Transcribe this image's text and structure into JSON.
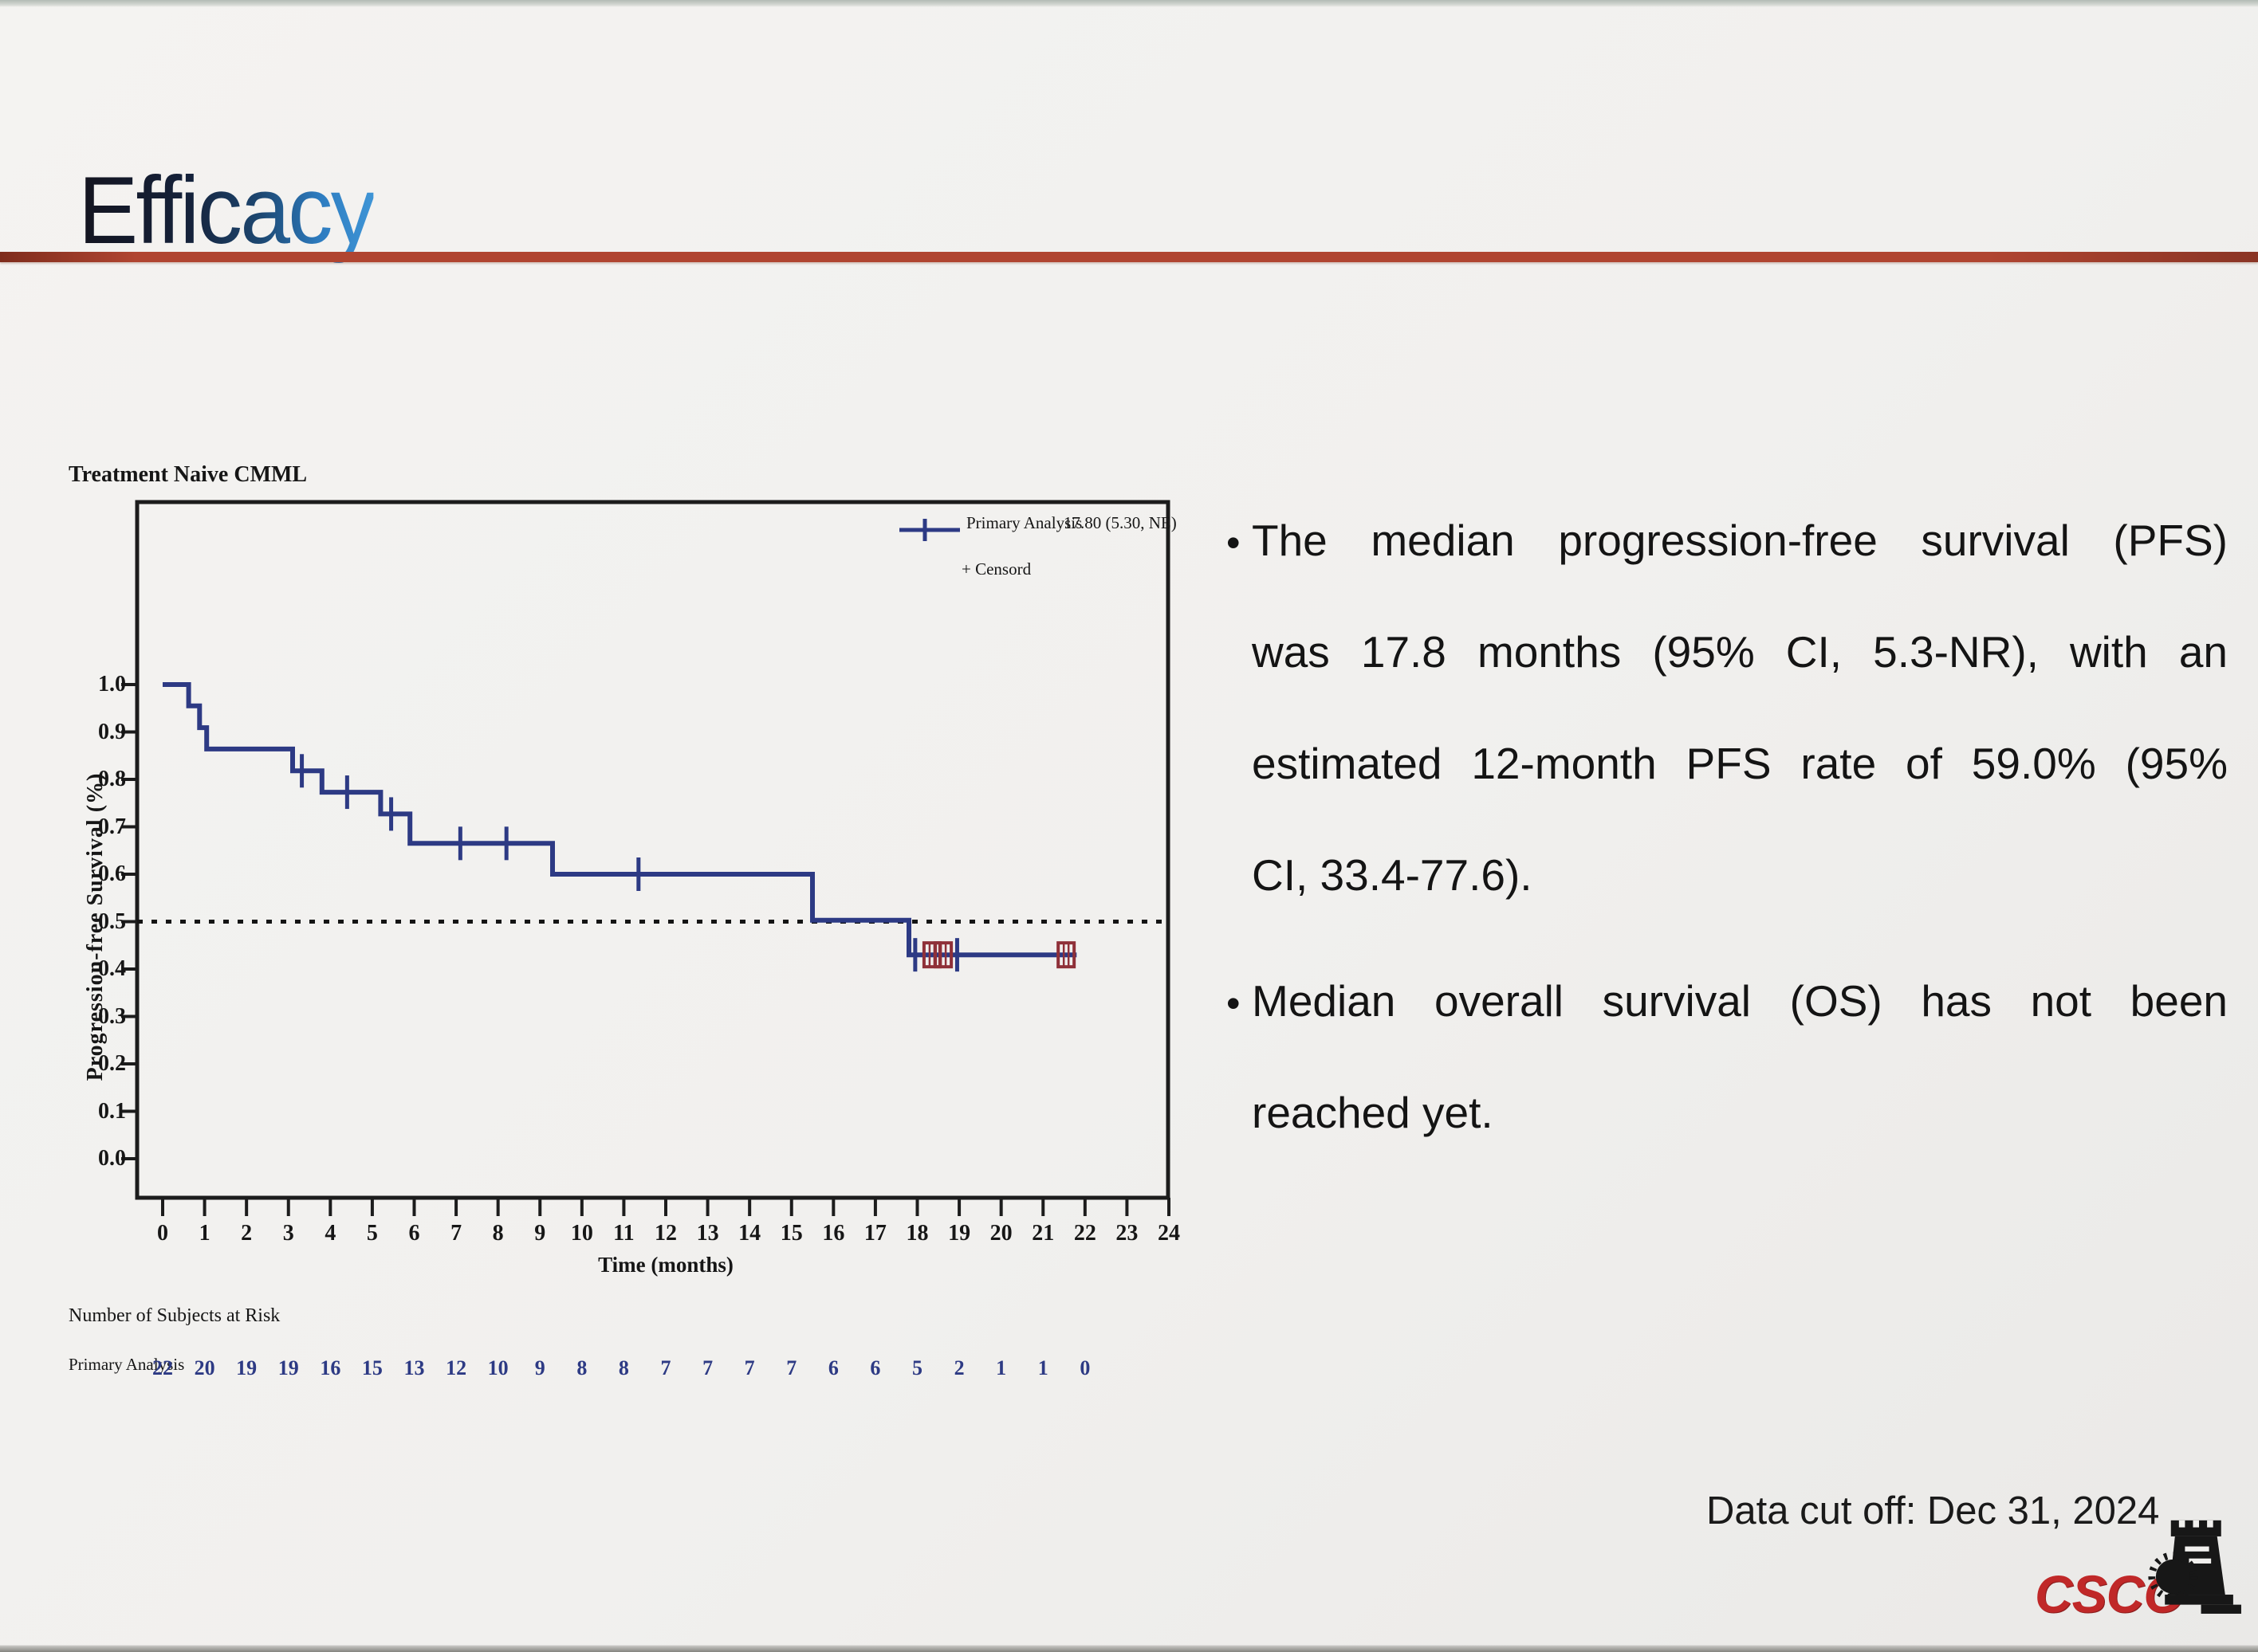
{
  "title": "Efficacy",
  "chart": {
    "title": "Treatment Naive CMML",
    "ylabel": "Progression-free Survival (%)",
    "xlabel": "Time (months)",
    "legend": {
      "series_label": "Primary Analysis",
      "median_label": "17.80 (5.30, NE)",
      "censor_label": "+ Censord"
    },
    "risk_header": "Number of Subjects at Risk",
    "risk_row_label": "Primary Analysis"
  },
  "chart_data": {
    "type": "line",
    "subtype": "kaplan-meier-step",
    "title": "Treatment Naive CMML",
    "xlabel": "Time (months)",
    "ylabel": "Progression-free Survival (%)",
    "xlim": [
      0,
      24
    ],
    "ylim": [
      0.0,
      1.0
    ],
    "xticks": [
      0,
      1,
      2,
      3,
      4,
      5,
      6,
      7,
      8,
      9,
      10,
      11,
      12,
      13,
      14,
      15,
      16,
      17,
      18,
      19,
      20,
      21,
      22,
      23,
      24
    ],
    "yticks": [
      0.0,
      0.1,
      0.2,
      0.3,
      0.4,
      0.5,
      0.6,
      0.7,
      0.8,
      0.9,
      1.0
    ],
    "reference_line_y": 0.5,
    "grid": false,
    "legend_position": "top-right-inside",
    "series": [
      {
        "name": "Primary Analysis",
        "median_pfs": "17.80 (5.30, NE)",
        "steps": [
          [
            0.0,
            1.0
          ],
          [
            0.62,
            1.0
          ],
          [
            0.62,
            0.955
          ],
          [
            0.88,
            0.955
          ],
          [
            0.88,
            0.909
          ],
          [
            1.05,
            0.909
          ],
          [
            1.05,
            0.864
          ],
          [
            3.1,
            0.864
          ],
          [
            3.1,
            0.818
          ],
          [
            3.8,
            0.818
          ],
          [
            3.8,
            0.773
          ],
          [
            5.2,
            0.773
          ],
          [
            5.2,
            0.727
          ],
          [
            5.9,
            0.727
          ],
          [
            5.9,
            0.665
          ],
          [
            9.3,
            0.665
          ],
          [
            9.3,
            0.6
          ],
          [
            15.5,
            0.6
          ],
          [
            15.5,
            0.503
          ],
          [
            17.8,
            0.503
          ],
          [
            17.8,
            0.43
          ],
          [
            21.8,
            0.43
          ]
        ],
        "censor_plus": [
          [
            3.32,
            0.818
          ],
          [
            4.4,
            0.773
          ],
          [
            5.45,
            0.727
          ],
          [
            7.1,
            0.665
          ],
          [
            8.2,
            0.665
          ],
          [
            11.35,
            0.6
          ],
          [
            17.95,
            0.43
          ],
          [
            18.95,
            0.43
          ]
        ],
        "censor_square": [
          [
            18.35,
            0.43
          ],
          [
            18.62,
            0.43
          ],
          [
            21.55,
            0.43
          ]
        ]
      }
    ],
    "risk_table": {
      "label": "Primary Analysis",
      "months": [
        0,
        1,
        2,
        3,
        4,
        5,
        6,
        7,
        8,
        9,
        10,
        11,
        12,
        13,
        14,
        15,
        16,
        17,
        18,
        19,
        20,
        21,
        22
      ],
      "at_risk": [
        22,
        20,
        19,
        19,
        16,
        15,
        13,
        12,
        10,
        9,
        8,
        8,
        7,
        7,
        7,
        7,
        6,
        6,
        5,
        2,
        1,
        1,
        0
      ]
    },
    "colors": {
      "curve": "#2d3a84",
      "censor_square": "#8f3038",
      "risk_numbers": "#2d3a84",
      "reference_line": "#141414"
    }
  },
  "bullets": {
    "marker": "•",
    "p1_lines": [
      "The median progression-free survival (PFS)",
      "was 17.8 months (95% CI, 5.3-NR), with an",
      "estimated 12-month PFS rate of 59.0% (95%",
      "CI, 33.4-77.6)."
    ],
    "p2_lines": [
      "Median overall survival (OS) has not been",
      "reached yet."
    ]
  },
  "footer": {
    "data_cutoff": "Data cut off: Dec 31, 2024",
    "logo_text": "CSCO"
  }
}
